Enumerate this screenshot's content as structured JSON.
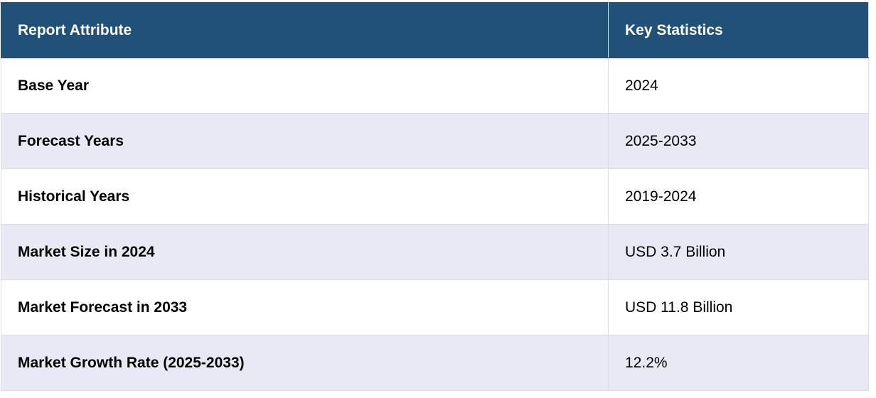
{
  "table": {
    "header": [
      "Report Attribute",
      "Key Statistics"
    ],
    "rows": [
      [
        "Base Year",
        "2024"
      ],
      [
        "Forecast Years",
        "2025-2033"
      ],
      [
        "Historical Years",
        "2019-2024"
      ],
      [
        "Market Size in 2024",
        "USD 3.7 Billion"
      ],
      [
        "Market Forecast in 2033",
        "USD 11.8 Billion"
      ],
      [
        "Market Growth Rate (2025-2033)",
        "12.2%"
      ]
    ]
  }
}
